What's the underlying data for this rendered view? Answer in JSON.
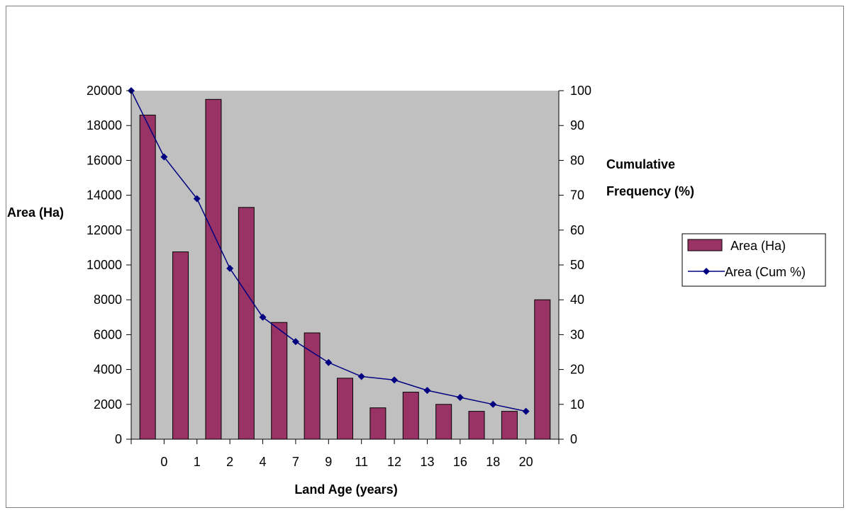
{
  "chart_data": {
    "type": "bar",
    "categories": [
      "",
      "0",
      "1",
      "2",
      "4",
      "7",
      "9",
      "11",
      "12",
      "13",
      "16",
      "18",
      "20"
    ],
    "series": [
      {
        "name": "Area (Ha)",
        "type": "bar",
        "axis": "left",
        "color": "#993366",
        "values": [
          18600,
          10750,
          19500,
          13300,
          6700,
          6100,
          3500,
          1800,
          2700,
          2000,
          1600,
          1600,
          8000
        ]
      },
      {
        "name": "Area (Cum %)",
        "type": "line",
        "axis": "right",
        "color": "#000080",
        "marker": "diamond",
        "values": [
          100,
          81,
          69,
          49,
          35,
          28,
          22,
          18,
          17,
          14,
          12,
          10,
          8
        ]
      }
    ],
    "xlabel": "Land Age (years)",
    "ylabel": "Area (Ha)",
    "y2label_lines": [
      "Cumulative",
      "Frequency (%)"
    ],
    "ylim": [
      0,
      20000
    ],
    "y2lim": [
      0,
      100
    ],
    "yticks": [
      0,
      2000,
      4000,
      6000,
      8000,
      10000,
      12000,
      14000,
      16000,
      18000,
      20000
    ],
    "y2ticks": [
      0,
      10,
      20,
      30,
      40,
      50,
      60,
      70,
      80,
      90,
      100
    ],
    "plot_background": "#c0c0c0",
    "legend_position": "right"
  }
}
